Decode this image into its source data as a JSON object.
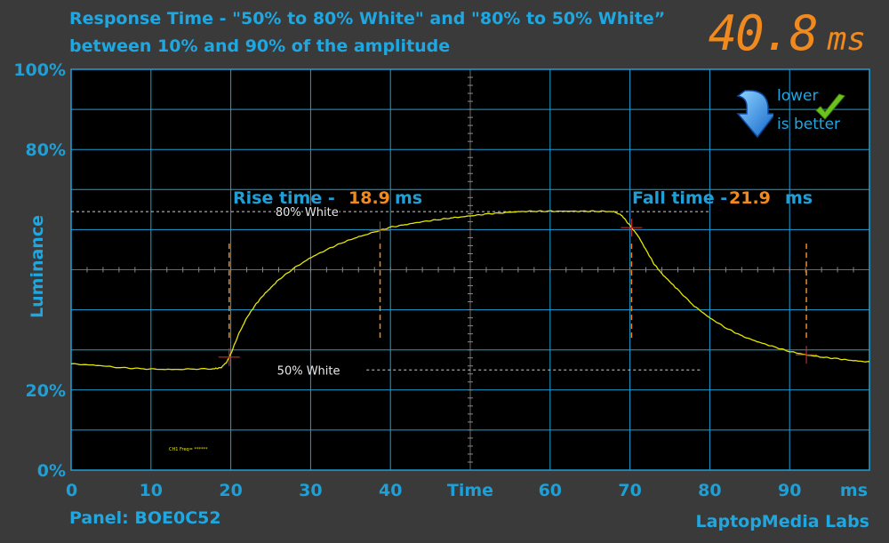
{
  "title": {
    "line1": "Response Time - \"50% to 80% White\" and \"80% to 50% White”",
    "line2": "between 10% and 90% of the amplitude"
  },
  "total": {
    "value": "40.8",
    "unit": "ms"
  },
  "badge": {
    "line1": "lower",
    "line2": "is better",
    "icon": "arrow-down-icon",
    "check": "check-icon"
  },
  "panel_label": "Panel: BOE0C52",
  "credit": "LaptopMedia Labs",
  "colors": {
    "accent": "#1ea7e1",
    "highlight": "#f08a1e",
    "trace": "#e6e600",
    "marker": "#e03030",
    "grid": "#1e9fd6",
    "plot_bg": "#000000"
  },
  "chart_data": {
    "type": "line",
    "xlabel": "Time",
    "ylabel": "Luminance",
    "x_unit_label": "ms",
    "xlim": [
      0,
      100
    ],
    "ylim": [
      0,
      100
    ],
    "x_ticks": [
      "0",
      "10",
      "20",
      "30",
      "40",
      "Time",
      "60",
      "70",
      "80",
      "90",
      "ms"
    ],
    "y_ticks": [
      {
        "v": 0,
        "label": "0%"
      },
      {
        "v": 20,
        "label": "20%"
      },
      {
        "v": 80,
        "label": "80%"
      },
      {
        "v": 100,
        "label": "100%"
      }
    ],
    "grid": true,
    "reference_lines": [
      {
        "label": "80% White",
        "y": 64.5,
        "x_start": 0,
        "x_end": 80
      },
      {
        "label": "50% White",
        "y": 25.0,
        "x_start": 37,
        "x_end": 79
      }
    ],
    "annotations": {
      "rise": {
        "prefix": "Rise time -",
        "value": "18.9",
        "unit": "ms",
        "x_start": 19.8,
        "x_end": 38.7
      },
      "fall": {
        "prefix": "Fall time -",
        "value": "21.9",
        "unit": "ms",
        "x_start": 70.2,
        "x_end": 92.1
      }
    },
    "small_note": "CH1 Freq= ******",
    "series": [
      {
        "values": [
          [
            0,
            26.5
          ],
          [
            3,
            26.2
          ],
          [
            6,
            25.6
          ],
          [
            9,
            25.3
          ],
          [
            12,
            25.1
          ],
          [
            15,
            25.2
          ],
          [
            18,
            25.3
          ],
          [
            18.8,
            25.6
          ],
          [
            19.5,
            27
          ],
          [
            20,
            29
          ],
          [
            21,
            34
          ],
          [
            22,
            38
          ],
          [
            23,
            41
          ],
          [
            24,
            43.5
          ],
          [
            25,
            45.5
          ],
          [
            26,
            47.5
          ],
          [
            28,
            50.5
          ],
          [
            30,
            53
          ],
          [
            32,
            55
          ],
          [
            34,
            56.8
          ],
          [
            36,
            58.2
          ],
          [
            38,
            59.4
          ],
          [
            40,
            60.6
          ],
          [
            42,
            61.3
          ],
          [
            44,
            62
          ],
          [
            46,
            62.5
          ],
          [
            48,
            63
          ],
          [
            50,
            63.4
          ],
          [
            52,
            63.9
          ],
          [
            54,
            64.2
          ],
          [
            56,
            64.5
          ],
          [
            58,
            64.6
          ],
          [
            60,
            64.6
          ],
          [
            62,
            64.6
          ],
          [
            64,
            64.6
          ],
          [
            66,
            64.6
          ],
          [
            68,
            64.5
          ],
          [
            69,
            63.5
          ],
          [
            70,
            61
          ],
          [
            71,
            58.5
          ],
          [
            72,
            55
          ],
          [
            73,
            51.5
          ],
          [
            74,
            49
          ],
          [
            75,
            47
          ],
          [
            76,
            45
          ],
          [
            78,
            41
          ],
          [
            80,
            38
          ],
          [
            82,
            35.5
          ],
          [
            84,
            33.5
          ],
          [
            86,
            32
          ],
          [
            88,
            30.8
          ],
          [
            90,
            29.6
          ],
          [
            92,
            28.8
          ],
          [
            94,
            28.2
          ],
          [
            96,
            27.8
          ],
          [
            98,
            27.3
          ],
          [
            100,
            27
          ]
        ]
      }
    ]
  }
}
